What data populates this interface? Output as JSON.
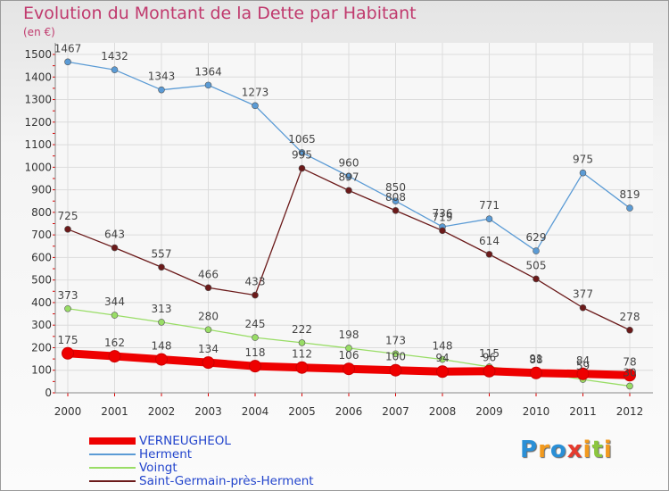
{
  "chart_data": {
    "type": "line",
    "title": "Evolution du Montant de la Dette par Habitant",
    "ylabel": "(en €)",
    "xlabel": "",
    "categories": [
      "2000",
      "2001",
      "2002",
      "2003",
      "2004",
      "2005",
      "2006",
      "2007",
      "2008",
      "2009",
      "2010",
      "2011",
      "2012"
    ],
    "ylim": [
      0,
      1500
    ],
    "yticks": [
      0,
      100,
      200,
      300,
      400,
      500,
      600,
      700,
      800,
      900,
      1000,
      1100,
      1200,
      1300,
      1400,
      1500
    ],
    "grid": true,
    "legend_position": "bottom-left",
    "series": [
      {
        "name": "VERNEUGHEOL",
        "color": "#ee0000",
        "values": [
          175,
          162,
          148,
          134,
          118,
          112,
          106,
          100,
          94,
          96,
          88,
          84,
          78
        ]
      },
      {
        "name": "Herment",
        "color": "#5b9bd5",
        "values": [
          1467,
          1432,
          1343,
          1364,
          1273,
          1065,
          960,
          850,
          736,
          771,
          629,
          975,
          819
        ]
      },
      {
        "name": "Voingt",
        "color": "#99dd66",
        "values": [
          373,
          344,
          313,
          280,
          245,
          222,
          198,
          173,
          148,
          115,
          91,
          59,
          30
        ]
      },
      {
        "name": "Saint-Germain-près-Herment",
        "color": "#6b1a1a",
        "values": [
          725,
          643,
          557,
          466,
          433,
          995,
          897,
          808,
          719,
          614,
          505,
          377,
          278
        ]
      }
    ]
  },
  "logo": {
    "letters": [
      "P",
      "r",
      "o",
      "x",
      "i",
      "t",
      "i"
    ],
    "colors": [
      "#2a8fd6",
      "#f29a1e",
      "#2a8fd6",
      "#e63b2e",
      "#f29a1e",
      "#8cc63f",
      "#f29a1e"
    ]
  }
}
